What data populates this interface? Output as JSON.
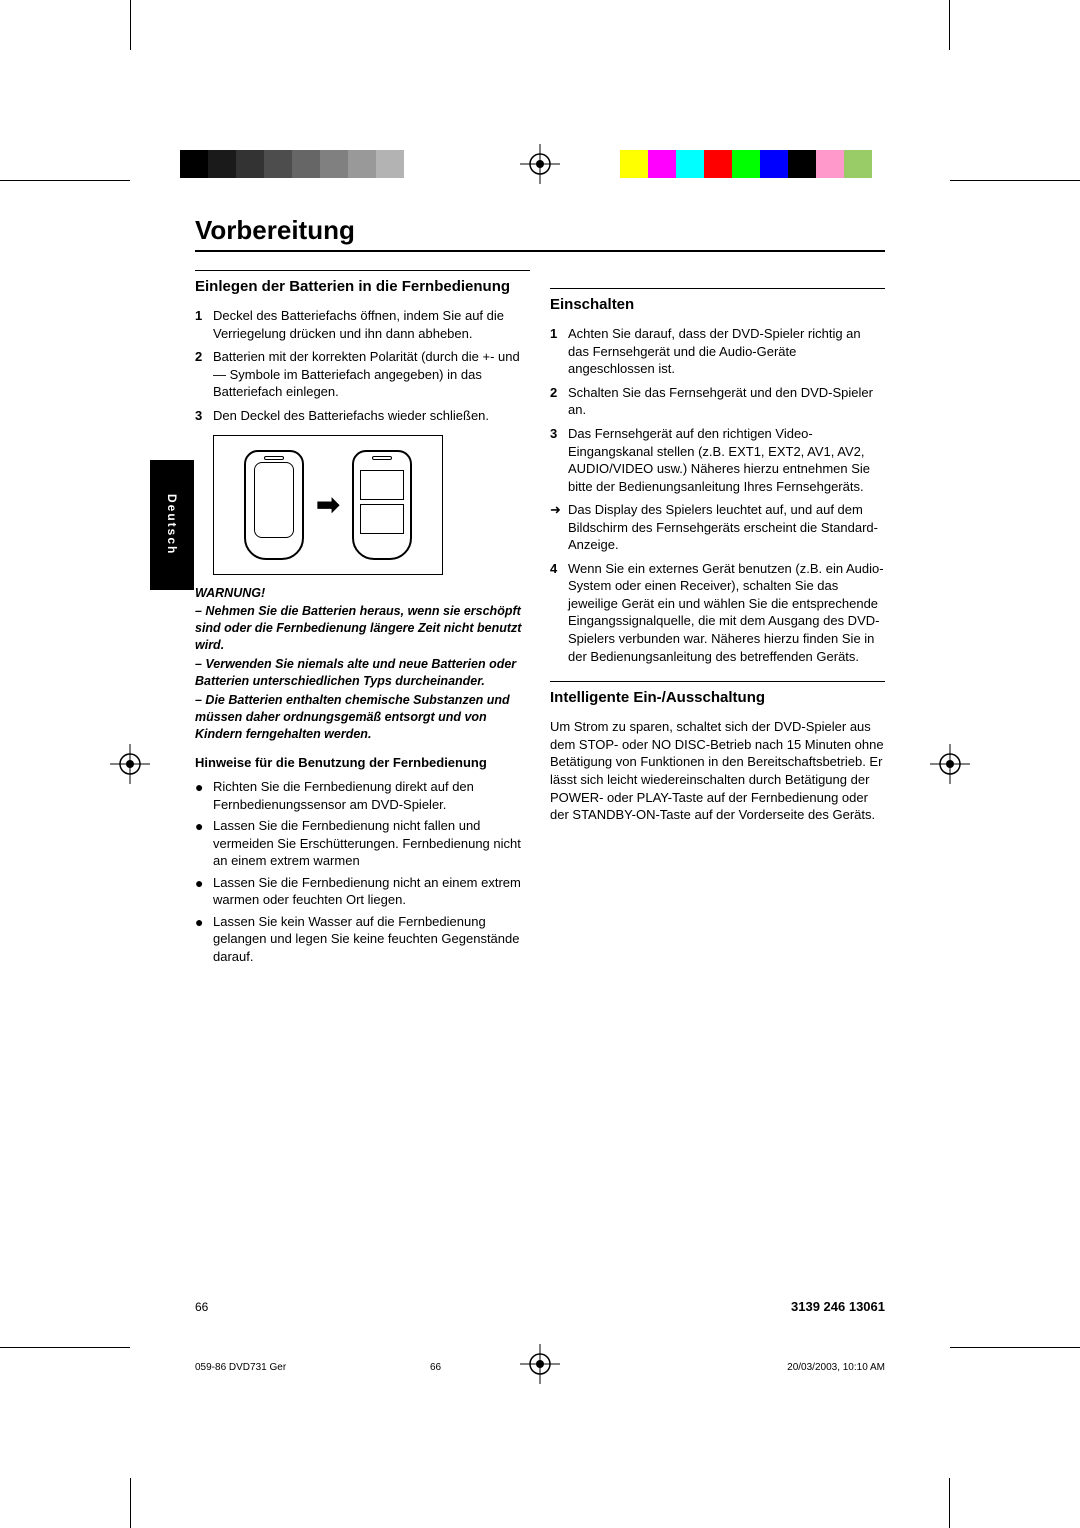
{
  "colorbar_left": [
    "#000000",
    "#1a1a1a",
    "#333333",
    "#4d4d4d",
    "#666666",
    "#808080",
    "#999999",
    "#b3b3b3",
    "#ffffff"
  ],
  "colorbar_right": [
    "#ffff00",
    "#ff00ff",
    "#00ffff",
    "#ff0000",
    "#00ff00",
    "#0000ff",
    "#000000",
    "#ff99cc",
    "#99cc66",
    "#ffffff"
  ],
  "lang_tab": "Deutsch",
  "page_title": "Vorbereitung",
  "left": {
    "h1": "Einlegen der Batterien in die Fernbedienung",
    "steps": [
      "Deckel des Batteriefachs öffnen, indem Sie auf die Verriegelung drücken und ihn dann abheben.",
      "Batterien mit der korrekten Polarität (durch die +- und — Symbole im Batteriefach angegeben) in das Batteriefach einlegen.",
      "Den Deckel des Batteriefachs wieder schließen."
    ],
    "warn_title": "WARNUNG!",
    "warn": [
      "– Nehmen Sie die Batterien heraus, wenn sie erschöpft sind oder die Fernbedienung längere Zeit nicht benutzt wird.",
      "– Verwenden Sie niemals alte und neue Batterien oder Batterien unterschiedlichen Typs durcheinander.",
      "– Die Batterien enthalten chemische Substanzen und müssen daher ordnungsgemäß entsorgt und von Kindern ferngehalten werden."
    ],
    "h2": "Hinweise für die Benutzung der Fernbedienung",
    "bullets": [
      "Richten Sie die Fernbedienung direkt auf den Fernbedienungssensor am DVD-Spieler.",
      "Lassen Sie die Fernbedienung nicht fallen und vermeiden Sie Erschütterungen. Fernbedienung nicht an einem extrem warmen",
      "Lassen Sie die Fernbedienung nicht an einem extrem warmen oder feuchten Ort liegen.",
      "Lassen Sie kein Wasser auf die Fernbedienung gelangen und legen Sie keine feuchten Gegenstände darauf."
    ]
  },
  "right": {
    "h1": "Einschalten",
    "steps": [
      "Achten Sie darauf, dass der DVD-Spieler richtig an das Fernsehgerät und die Audio-Geräte angeschlossen ist.",
      "Schalten Sie das Fernsehgerät und den DVD-Spieler an.",
      "Das Fernsehgerät auf den richtigen Video-Eingangskanal stellen (z.B. EXT1, EXT2, AV1, AV2, AUDIO/VIDEO usw.) Näheres hierzu entnehmen Sie bitte der Bedienungsanleitung Ihres Fernsehgeräts."
    ],
    "arrow_line": "Das Display des Spielers leuchtet auf, und auf dem Bildschirm des Fernsehgeräts erscheint die Standard-Anzeige.",
    "step4": "Wenn Sie ein externes Gerät benutzen (z.B. ein Audio-System oder einen Receiver), schalten Sie das jeweilige Gerät ein und wählen Sie die entsprechende Eingangssignalquelle, die mit dem Ausgang des DVD-Spielers verbunden war. Näheres hierzu finden Sie in der Bedienungsanleitung des betreffenden Geräts.",
    "h2": "Intelligente Ein-/Ausschaltung",
    "p2": "Um Strom zu sparen, schaltet sich der DVD-Spieler aus dem STOP- oder NO DISC-Betrieb nach 15 Minuten ohne Betätigung von Funktionen in den Bereitschaftsbetrieb. Er lässt sich leicht wiedereinschalten durch Betätigung der POWER- oder PLAY-Taste auf der Fernbedienung oder der STANDBY-ON-Taste auf der Vorderseite des Geräts."
  },
  "page_num": "66",
  "part_num": "3139 246 13061",
  "footer_left": "059-86 DVD731 Ger",
  "footer_mid": "66",
  "footer_right": "20/03/2003, 10:10 AM"
}
